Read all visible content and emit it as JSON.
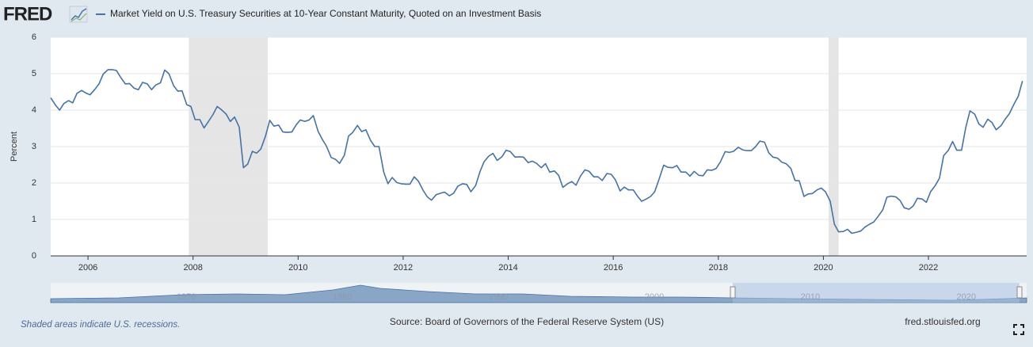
{
  "brand": "FRED",
  "chart_data": {
    "type": "line",
    "legend": "Market Yield on U.S. Treasury Securities at 10-Year Constant Maturity, Quoted on an Investment Basis",
    "ylabel": "Percent",
    "xlim": [
      2005.29,
      2023.87
    ],
    "xticks": [
      2006,
      2008,
      2010,
      2012,
      2014,
      2016,
      2018,
      2020,
      2022
    ],
    "ylim": [
      0,
      6
    ],
    "yticks": [
      0,
      1,
      2,
      3,
      4,
      5,
      6
    ],
    "grid": true,
    "recessions": [
      [
        2007.92,
        2009.42
      ],
      [
        2020.1,
        2020.29
      ]
    ],
    "recession_color": "#e5e5e5",
    "series": [
      {
        "name": "Market Yield on U.S. Treasury Securities at 10-Year Constant Maturity, Quoted on an Investment Basis",
        "color": "#4572a7",
        "x": [
          2005.29,
          2005.38,
          2005.46,
          2005.54,
          2005.63,
          2005.71,
          2005.79,
          2005.88,
          2005.96,
          2006.04,
          2006.13,
          2006.21,
          2006.29,
          2006.38,
          2006.46,
          2006.54,
          2006.63,
          2006.71,
          2006.79,
          2006.88,
          2006.96,
          2007.04,
          2007.13,
          2007.21,
          2007.29,
          2007.38,
          2007.46,
          2007.54,
          2007.63,
          2007.71,
          2007.79,
          2007.88,
          2007.96,
          2008.04,
          2008.13,
          2008.21,
          2008.29,
          2008.38,
          2008.46,
          2008.54,
          2008.63,
          2008.71,
          2008.79,
          2008.88,
          2008.96,
          2009.04,
          2009.13,
          2009.21,
          2009.29,
          2009.38,
          2009.46,
          2009.54,
          2009.63,
          2009.71,
          2009.79,
          2009.88,
          2009.96,
          2010.04,
          2010.13,
          2010.21,
          2010.29,
          2010.38,
          2010.46,
          2010.54,
          2010.63,
          2010.71,
          2010.79,
          2010.88,
          2010.96,
          2011.04,
          2011.13,
          2011.21,
          2011.29,
          2011.38,
          2011.46,
          2011.54,
          2011.63,
          2011.71,
          2011.79,
          2011.88,
          2011.96,
          2012.04,
          2012.13,
          2012.21,
          2012.29,
          2012.38,
          2012.46,
          2012.54,
          2012.63,
          2012.71,
          2012.79,
          2012.88,
          2012.96,
          2013.04,
          2013.13,
          2013.21,
          2013.29,
          2013.38,
          2013.46,
          2013.54,
          2013.63,
          2013.71,
          2013.79,
          2013.88,
          2013.96,
          2014.04,
          2014.13,
          2014.21,
          2014.29,
          2014.38,
          2014.46,
          2014.54,
          2014.63,
          2014.71,
          2014.79,
          2014.88,
          2014.96,
          2015.04,
          2015.13,
          2015.21,
          2015.29,
          2015.38,
          2015.46,
          2015.54,
          2015.63,
          2015.71,
          2015.79,
          2015.88,
          2015.96,
          2016.04,
          2016.13,
          2016.21,
          2016.29,
          2016.38,
          2016.46,
          2016.54,
          2016.63,
          2016.71,
          2016.79,
          2016.88,
          2016.96,
          2017.04,
          2017.13,
          2017.21,
          2017.29,
          2017.38,
          2017.46,
          2017.54,
          2017.63,
          2017.71,
          2017.79,
          2017.88,
          2017.96,
          2018.04,
          2018.13,
          2018.21,
          2018.29,
          2018.38,
          2018.46,
          2018.54,
          2018.63,
          2018.71,
          2018.79,
          2018.88,
          2018.96,
          2019.04,
          2019.13,
          2019.21,
          2019.29,
          2019.38,
          2019.46,
          2019.54,
          2019.63,
          2019.71,
          2019.79,
          2019.88,
          2019.96,
          2020.04,
          2020.13,
          2020.21,
          2020.29,
          2020.38,
          2020.46,
          2020.54,
          2020.63,
          2020.71,
          2020.79,
          2020.88,
          2020.96,
          2021.04,
          2021.13,
          2021.21,
          2021.29,
          2021.38,
          2021.46,
          2021.54,
          2021.63,
          2021.71,
          2021.79,
          2021.88,
          2021.96,
          2022.04,
          2022.13,
          2022.21,
          2022.29,
          2022.38,
          2022.46,
          2022.54,
          2022.63,
          2022.71,
          2022.79,
          2022.88,
          2022.96,
          2023.04,
          2023.13,
          2023.21,
          2023.29,
          2023.38,
          2023.46,
          2023.54,
          2023.63,
          2023.71,
          2023.79
        ],
        "values": [
          4.34,
          4.14,
          4.0,
          4.18,
          4.26,
          4.2,
          4.46,
          4.54,
          4.47,
          4.42,
          4.57,
          4.72,
          4.99,
          5.11,
          5.11,
          5.09,
          4.88,
          4.72,
          4.73,
          4.6,
          4.56,
          4.76,
          4.72,
          4.56,
          4.69,
          4.75,
          5.1,
          5.0,
          4.67,
          4.52,
          4.53,
          4.15,
          4.1,
          3.74,
          3.74,
          3.51,
          3.68,
          3.88,
          4.1,
          4.01,
          3.89,
          3.69,
          3.81,
          3.53,
          2.42,
          2.52,
          2.87,
          2.82,
          2.93,
          3.29,
          3.72,
          3.56,
          3.59,
          3.4,
          3.39,
          3.4,
          3.59,
          3.73,
          3.69,
          3.73,
          3.85,
          3.42,
          3.2,
          3.01,
          2.7,
          2.65,
          2.54,
          2.76,
          3.29,
          3.39,
          3.58,
          3.41,
          3.46,
          3.17,
          3.0,
          3.0,
          2.3,
          1.98,
          2.15,
          2.01,
          1.98,
          1.97,
          1.97,
          2.17,
          2.05,
          1.8,
          1.62,
          1.53,
          1.68,
          1.72,
          1.75,
          1.65,
          1.72,
          1.91,
          1.98,
          1.96,
          1.76,
          1.93,
          2.3,
          2.58,
          2.74,
          2.81,
          2.62,
          2.72,
          2.9,
          2.86,
          2.71,
          2.72,
          2.71,
          2.56,
          2.6,
          2.54,
          2.42,
          2.53,
          2.3,
          2.33,
          2.21,
          1.88,
          1.98,
          2.04,
          1.94,
          2.2,
          2.36,
          2.32,
          2.17,
          2.17,
          2.07,
          2.26,
          2.24,
          2.09,
          1.78,
          1.89,
          1.81,
          1.81,
          1.64,
          1.5,
          1.56,
          1.63,
          1.76,
          2.14,
          2.49,
          2.43,
          2.42,
          2.48,
          2.3,
          2.3,
          2.19,
          2.32,
          2.21,
          2.2,
          2.36,
          2.35,
          2.4,
          2.58,
          2.86,
          2.84,
          2.87,
          2.98,
          2.91,
          2.89,
          2.89,
          3.0,
          3.15,
          3.12,
          2.83,
          2.71,
          2.68,
          2.57,
          2.53,
          2.4,
          2.07,
          2.06,
          1.63,
          1.7,
          1.71,
          1.81,
          1.86,
          1.76,
          1.5,
          0.87,
          0.66,
          0.67,
          0.73,
          0.62,
          0.65,
          0.68,
          0.79,
          0.87,
          0.93,
          1.08,
          1.26,
          1.61,
          1.64,
          1.62,
          1.52,
          1.32,
          1.28,
          1.37,
          1.58,
          1.56,
          1.47,
          1.76,
          1.93,
          2.13,
          2.75,
          2.9,
          3.14,
          2.9,
          2.9,
          3.52,
          3.98,
          3.89,
          3.62,
          3.53,
          3.75,
          3.66,
          3.46,
          3.57,
          3.75,
          3.9,
          4.17,
          4.38,
          4.8
        ]
      }
    ]
  },
  "navigator": {
    "xlim": [
      1961.3,
      2023.87
    ],
    "xticks": [
      1970,
      1980,
      1990,
      2000,
      2010,
      2020
    ]
  },
  "footer": {
    "note": "Shaded areas indicate U.S. recessions.",
    "source": "Source: Board of Governors of the Federal Reserve System (US)",
    "site": "fred.stlouisfed.org"
  }
}
